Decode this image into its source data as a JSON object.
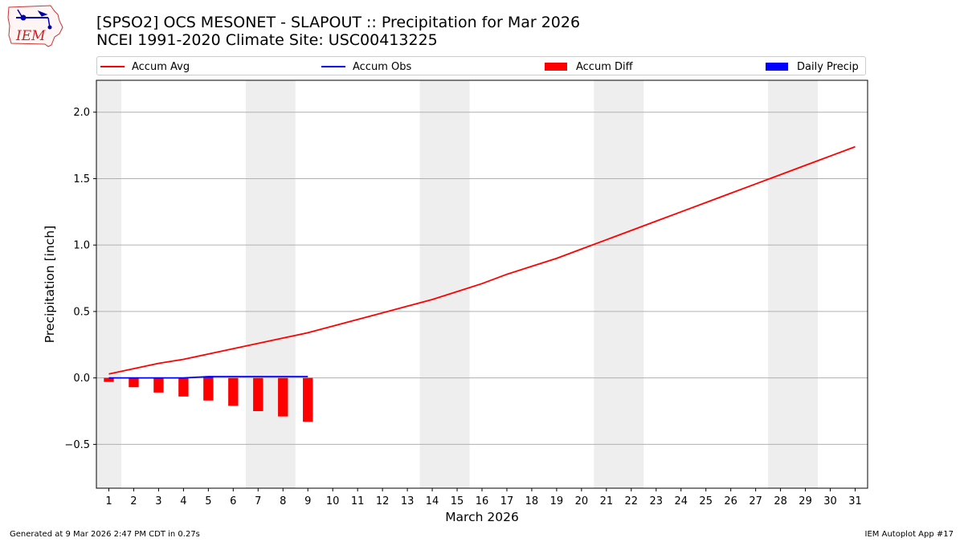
{
  "header": {
    "logo_text": "IEM",
    "title": "[SPSO2] OCS MESONET - SLAPOUT :: Precipitation for Mar 2026",
    "subtitle": "NCEI 1991-2020 Climate Site: USC00413225"
  },
  "legend": {
    "placement": "top",
    "items": [
      {
        "label": "Accum Avg",
        "kind": "line",
        "color": "#ff0000"
      },
      {
        "label": "Accum Obs",
        "kind": "line",
        "color": "#0000ff"
      },
      {
        "label": "Accum Diff",
        "kind": "patch",
        "color": "#ff0000"
      },
      {
        "label": "Daily Precip",
        "kind": "patch",
        "color": "#0000ff"
      }
    ]
  },
  "footer": {
    "left": "Generated at 9 Mar 2026 2:47 PM CDT in 0.27s",
    "right": "IEM Autoplot App #17"
  },
  "chart_data": {
    "type": "line",
    "xlabel": "March 2026",
    "ylabel": "Precipitation [inch]",
    "xlim": [
      0.5,
      31.5
    ],
    "ylim": [
      -0.83,
      2.24
    ],
    "x_ticks": [
      1,
      2,
      3,
      4,
      5,
      6,
      7,
      8,
      9,
      10,
      11,
      12,
      13,
      14,
      15,
      16,
      17,
      18,
      19,
      20,
      21,
      22,
      23,
      24,
      25,
      26,
      27,
      28,
      29,
      30,
      31
    ],
    "y_ticks": [
      -0.5,
      0.0,
      0.5,
      1.0,
      1.5,
      2.0
    ],
    "y_tick_labels": [
      "−0.5",
      "0.0",
      "0.5",
      "1.0",
      "1.5",
      "2.0"
    ],
    "grid": "horizontal",
    "weekend_shading": [
      [
        0.5,
        1.5
      ],
      [
        6.5,
        8.5
      ],
      [
        13.5,
        15.5
      ],
      [
        20.5,
        22.5
      ],
      [
        27.5,
        29.5
      ]
    ],
    "weekend_color": "#eeeeee",
    "days": [
      1,
      2,
      3,
      4,
      5,
      6,
      7,
      8,
      9,
      10,
      11,
      12,
      13,
      14,
      15,
      16,
      17,
      18,
      19,
      20,
      21,
      22,
      23,
      24,
      25,
      26,
      27,
      28,
      29,
      30,
      31
    ],
    "series": [
      {
        "name": "Accum Avg",
        "kind": "line",
        "color": "#ff0000",
        "x": [
          1,
          2,
          3,
          4,
          5,
          6,
          7,
          8,
          9,
          10,
          11,
          12,
          13,
          14,
          15,
          16,
          17,
          18,
          19,
          20,
          21,
          22,
          23,
          24,
          25,
          26,
          27,
          28,
          29,
          30,
          31
        ],
        "values": [
          0.03,
          0.07,
          0.11,
          0.14,
          0.18,
          0.22,
          0.26,
          0.3,
          0.34,
          0.39,
          0.44,
          0.49,
          0.54,
          0.59,
          0.65,
          0.71,
          0.78,
          0.84,
          0.9,
          0.97,
          1.04,
          1.11,
          1.18,
          1.25,
          1.32,
          1.39,
          1.46,
          1.53,
          1.6,
          1.67,
          1.74
        ]
      },
      {
        "name": "Accum Obs",
        "kind": "line",
        "color": "#0000ff",
        "x": [
          1,
          2,
          3,
          4,
          5,
          6,
          7,
          8,
          9
        ],
        "values": [
          0.0,
          0.0,
          0.0,
          0.0,
          0.01,
          0.01,
          0.01,
          0.01,
          0.01
        ]
      },
      {
        "name": "Accum Diff",
        "kind": "bar",
        "color": "#ff0000",
        "x": [
          1,
          2,
          3,
          4,
          5,
          6,
          7,
          8,
          9
        ],
        "values": [
          -0.03,
          -0.07,
          -0.11,
          -0.14,
          -0.17,
          -0.21,
          -0.25,
          -0.29,
          -0.33
        ]
      },
      {
        "name": "Daily Precip",
        "kind": "bar",
        "color": "#0000ff",
        "x": [
          1,
          2,
          3,
          4,
          5,
          6,
          7,
          8,
          9
        ],
        "values": [
          0.0,
          0.0,
          0.0,
          0.0,
          0.01,
          0.0,
          0.0,
          0.0,
          0.0
        ]
      }
    ]
  }
}
